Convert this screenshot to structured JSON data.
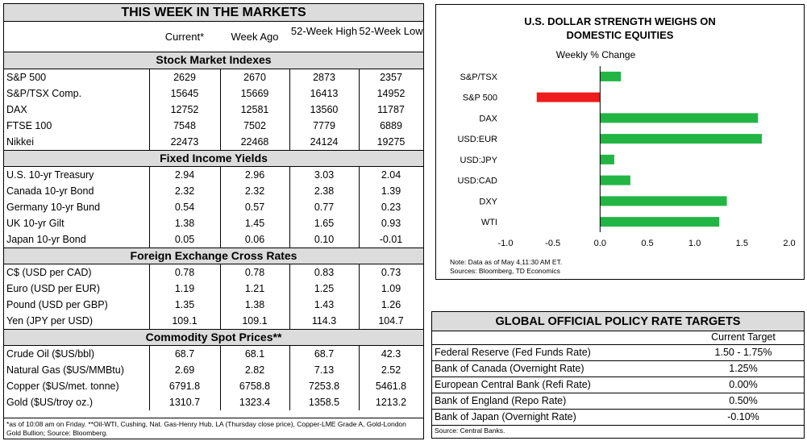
{
  "markets": {
    "title": "THIS WEEK IN THE MARKETS",
    "columns": [
      "Current*",
      "Week Ago",
      "52-Week High",
      "52-Week Low"
    ],
    "sections": [
      {
        "title": "Stock Market Indexes",
        "rows": [
          {
            "label": "S&P 500",
            "values": [
              "2629",
              "2670",
              "2873",
              "2357"
            ]
          },
          {
            "label": "S&P/TSX Comp.",
            "values": [
              "15645",
              "15669",
              "16413",
              "14952"
            ]
          },
          {
            "label": "DAX",
            "values": [
              "12752",
              "12581",
              "13560",
              "11787"
            ]
          },
          {
            "label": "FTSE 100",
            "values": [
              "7548",
              "7502",
              "7779",
              "6889"
            ]
          },
          {
            "label": "Nikkei",
            "values": [
              "22473",
              "22468",
              "24124",
              "19275"
            ]
          }
        ]
      },
      {
        "title": "Fixed Income Yields",
        "rows": [
          {
            "label": "U.S. 10-yr Treasury",
            "values": [
              "2.94",
              "2.96",
              "3.03",
              "2.04"
            ]
          },
          {
            "label": "Canada 10-yr Bond",
            "values": [
              "2.32",
              "2.32",
              "2.38",
              "1.39"
            ]
          },
          {
            "label": "Germany 10-yr Bund",
            "values": [
              "0.54",
              "0.57",
              "0.77",
              "0.23"
            ]
          },
          {
            "label": "UK 10-yr Gilt",
            "values": [
              "1.38",
              "1.45",
              "1.65",
              "0.93"
            ]
          },
          {
            "label": "Japan 10-yr Bond",
            "values": [
              "0.05",
              "0.06",
              "0.10",
              "-0.01"
            ]
          }
        ]
      },
      {
        "title": "Foreign Exchange Cross Rates",
        "rows": [
          {
            "label": "C$ (USD per CAD)",
            "values": [
              "0.78",
              "0.78",
              "0.83",
              "0.73"
            ]
          },
          {
            "label": "Euro (USD per EUR)",
            "values": [
              "1.19",
              "1.21",
              "1.25",
              "1.09"
            ]
          },
          {
            "label": "Pound (USD per GBP)",
            "values": [
              "1.35",
              "1.38",
              "1.43",
              "1.26"
            ]
          },
          {
            "label": "Yen (JPY per USD)",
            "values": [
              "109.1",
              "109.1",
              "114.3",
              "104.7"
            ]
          }
        ]
      },
      {
        "title": "Commodity Spot Prices**",
        "rows": [
          {
            "label": "Crude Oil ($US/bbl)",
            "values": [
              "68.7",
              "68.1",
              "68.7",
              "42.3"
            ]
          },
          {
            "label": "Natural Gas ($US/MMBtu)",
            "values": [
              "2.69",
              "2.82",
              "7.13",
              "2.52"
            ]
          },
          {
            "label": "Copper ($US/met. tonne)",
            "values": [
              "6791.8",
              "6758.8",
              "7253.8",
              "5461.8"
            ]
          },
          {
            "label": "Gold ($US/troy oz.)",
            "values": [
              "1310.7",
              "1323.4",
              "1358.5",
              "1213.2"
            ]
          }
        ]
      }
    ],
    "footnote": "*as of 10:08 am on Friday. **Oil-WTI, Cushing, Nat. Gas-Henry Hub, LA (Thursday close price), Copper-LME Grade A, Gold-London Gold Bullion; Source: Bloomberg."
  },
  "chart_data": {
    "type": "bar",
    "orientation": "horizontal",
    "title": "U.S. DOLLAR STRENGTH WEIGHS ON DOMESTIC EQUITIES",
    "title_lines": [
      "U.S. DOLLAR STRENGTH WEIGHS ON",
      "DOMESTIC EQUITIES"
    ],
    "subtitle": "Weekly % Change",
    "categories": [
      "S&P/TSX",
      "S&P 500",
      "DAX",
      "USD:EUR",
      "USD:JPY",
      "USD:CAD",
      "DXY",
      "WTI"
    ],
    "values": [
      0.22,
      -0.67,
      1.67,
      1.71,
      0.15,
      0.32,
      1.34,
      1.26
    ],
    "xlim": [
      -1.0,
      2.0
    ],
    "xticks": [
      "-1.0",
      "-0.5",
      "0.0",
      "0.5",
      "1.0",
      "1.5",
      "2.0"
    ],
    "xtick_values": [
      -1.0,
      -0.5,
      0.0,
      0.5,
      1.0,
      1.5,
      2.0
    ],
    "positive_color": "#22b544",
    "negative_color": "#ee1c1c",
    "note": "Note: Data as of May 4,11:30 AM ET.",
    "source": "Sources: Bloomberg, TD Economics"
  },
  "policy": {
    "title": "GLOBAL OFFICIAL POLICY RATE TARGETS",
    "column": "Current Target",
    "rows": [
      {
        "label": "Federal Reserve (Fed Funds Rate)",
        "value": "1.50 - 1.75%"
      },
      {
        "label": "Bank of Canada (Overnight Rate)",
        "value": "1.25%"
      },
      {
        "label": "European Central Bank (Refi Rate)",
        "value": "0.00%"
      },
      {
        "label": "Bank of England (Repo Rate)",
        "value": "0.50%"
      },
      {
        "label": "Bank of Japan (Overnight Rate)",
        "value": "-0.10%"
      }
    ],
    "source": "Source: Central Banks."
  }
}
